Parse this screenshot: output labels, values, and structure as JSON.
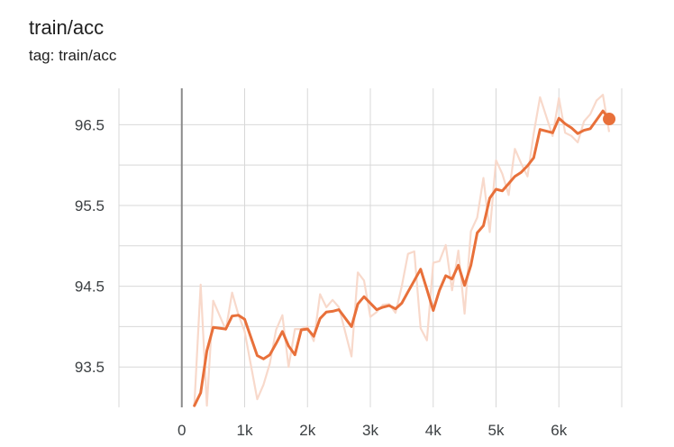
{
  "card": {
    "title": "train/acc",
    "subtitle": "tag: train/acc"
  },
  "colors": {
    "smoothed": "#e8703a",
    "raw": "#f8d9cb",
    "grid": "#d8d8d8",
    "zero_axis": "#8a8a8a"
  },
  "chart_data": {
    "type": "line",
    "title": "train/acc",
    "xlabel": "",
    "ylabel": "",
    "xlim": [
      -1000,
      7000
    ],
    "ylim": [
      93.0,
      96.95
    ],
    "x_ticks": [
      0,
      1000,
      2000,
      3000,
      4000,
      5000,
      6000
    ],
    "x_tick_labels": [
      "0",
      "1k",
      "2k",
      "3k",
      "4k",
      "5k",
      "6k"
    ],
    "y_ticks": [
      93.5,
      94.5,
      95.5,
      96.5
    ],
    "y_tick_labels": [
      "93.5",
      "94.5",
      "95.5",
      "96.5"
    ],
    "grid": true,
    "legend": "none",
    "series": [
      {
        "role": "smoothed",
        "x": [
          200,
          300,
          400,
          500,
          700,
          800,
          900,
          1000,
          1200,
          1300,
          1400,
          1500,
          1600,
          1700,
          1800,
          1900,
          2000,
          2100,
          2200,
          2300,
          2400,
          2500,
          2700,
          2800,
          2900,
          3000,
          3100,
          3200,
          3300,
          3400,
          3500,
          3600,
          3700,
          3800,
          3900,
          4000,
          4100,
          4200,
          4300,
          4400,
          4500,
          4600,
          4700,
          4800,
          4900,
          5000,
          5100,
          5200,
          5300,
          5400,
          5500,
          5600,
          5700,
          5900,
          6000,
          6100,
          6200,
          6300,
          6400,
          6500,
          6600,
          6700,
          6800
        ],
        "y": [
          93.02,
          93.18,
          93.7,
          93.99,
          93.97,
          94.13,
          94.14,
          94.09,
          93.64,
          93.6,
          93.65,
          93.79,
          93.94,
          93.76,
          93.65,
          93.96,
          93.97,
          93.88,
          94.1,
          94.18,
          94.19,
          94.21,
          94.0,
          94.28,
          94.37,
          94.29,
          94.21,
          94.24,
          94.26,
          94.22,
          94.29,
          94.43,
          94.57,
          94.71,
          94.46,
          94.2,
          94.45,
          94.63,
          94.59,
          94.76,
          94.51,
          94.76,
          95.16,
          95.25,
          95.59,
          95.7,
          95.68,
          95.77,
          95.86,
          95.91,
          95.99,
          96.09,
          96.44,
          96.4,
          96.58,
          96.51,
          96.46,
          96.39,
          96.43,
          96.45,
          96.56,
          96.67,
          96.57
        ]
      },
      {
        "role": "raw",
        "x": [
          200,
          300,
          400,
          500,
          700,
          800,
          900,
          1000,
          1200,
          1300,
          1400,
          1500,
          1600,
          1700,
          1800,
          1900,
          2000,
          2100,
          2200,
          2300,
          2400,
          2500,
          2700,
          2800,
          2900,
          3000,
          3100,
          3200,
          3300,
          3400,
          3500,
          3600,
          3700,
          3800,
          3900,
          4000,
          4100,
          4200,
          4300,
          4400,
          4500,
          4600,
          4700,
          4800,
          4900,
          5000,
          5100,
          5200,
          5300,
          5400,
          5500,
          5600,
          5700,
          5900,
          6000,
          6100,
          6200,
          6300,
          6400,
          6500,
          6600,
          6700,
          6800
        ],
        "y": [
          93.03,
          94.52,
          93.02,
          94.32,
          93.96,
          94.42,
          94.15,
          93.94,
          93.1,
          93.28,
          93.54,
          93.96,
          94.14,
          93.5,
          93.97,
          93.97,
          94.0,
          93.82,
          94.4,
          94.24,
          94.33,
          94.24,
          93.63,
          94.67,
          94.57,
          94.12,
          94.18,
          94.27,
          94.28,
          94.17,
          94.5,
          94.9,
          94.93,
          93.98,
          93.83,
          94.79,
          94.81,
          95.01,
          94.45,
          94.94,
          94.16,
          95.18,
          95.35,
          95.84,
          95.17,
          96.06,
          95.89,
          95.63,
          96.2,
          96.02,
          95.86,
          96.39,
          96.84,
          96.36,
          96.83,
          96.4,
          96.36,
          96.28,
          96.54,
          96.63,
          96.8,
          96.87,
          96.41
        ]
      }
    ]
  }
}
